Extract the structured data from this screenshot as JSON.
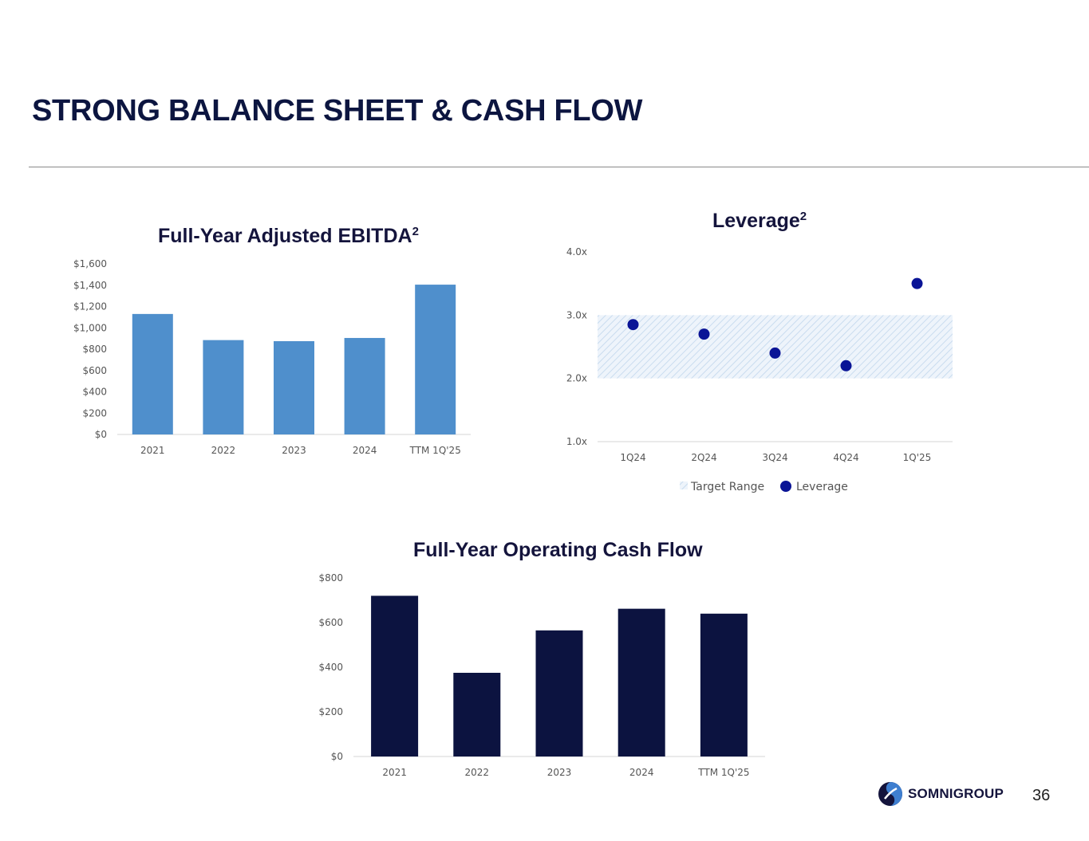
{
  "page": {
    "title": "STRONG BALANCE SHEET & CASH FLOW",
    "page_number": "36",
    "logo_text": "SOMNIGROUP"
  },
  "colors": {
    "title": "#0c1540",
    "ebitda_bar": "#4f8fcc",
    "leverage_point": "#0a1496",
    "target_range": "#dde8f5",
    "ocf_bar": "#0c1340"
  },
  "chart_data": [
    {
      "type": "bar",
      "title": "Full-Year Adjusted EBITDA",
      "title_superscript": "2",
      "categories": [
        "2021",
        "2022",
        "2023",
        "2024",
        "TTM 1Q'25"
      ],
      "values": [
        1130,
        885,
        875,
        905,
        1405
      ],
      "ylim": [
        0,
        1600
      ],
      "ytick_labels": [
        "$0",
        "$200",
        "$400",
        "$600",
        "$800",
        "$1,000",
        "$1,200",
        "$1,400",
        "$1,600"
      ],
      "grid": false,
      "legend": "none"
    },
    {
      "type": "scatter",
      "title": "Leverage",
      "title_superscript": "2",
      "categories": [
        "1Q24",
        "2Q24",
        "3Q24",
        "4Q24",
        "1Q'25"
      ],
      "series": [
        {
          "name": "Leverage",
          "values": [
            2.85,
            2.7,
            2.4,
            2.2,
            3.5
          ]
        }
      ],
      "target_range": {
        "name": "Target Range",
        "low": 2.0,
        "high": 3.0
      },
      "ylim": [
        1.0,
        4.0
      ],
      "ytick_labels": [
        "1.0x",
        "2.0x",
        "3.0x",
        "4.0x"
      ],
      "legend": [
        "Target Range",
        "Leverage"
      ],
      "legend_position": "bottom"
    },
    {
      "type": "bar",
      "title": "Full-Year Operating Cash Flow",
      "categories": [
        "2021",
        "2022",
        "2023",
        "2024",
        "TTM 1Q'25"
      ],
      "values": [
        720,
        375,
        565,
        662,
        640
      ],
      "ylim": [
        0,
        800
      ],
      "ytick_labels": [
        "$0",
        "$200",
        "$400",
        "$600",
        "$800"
      ],
      "grid": false,
      "legend": "none"
    }
  ]
}
